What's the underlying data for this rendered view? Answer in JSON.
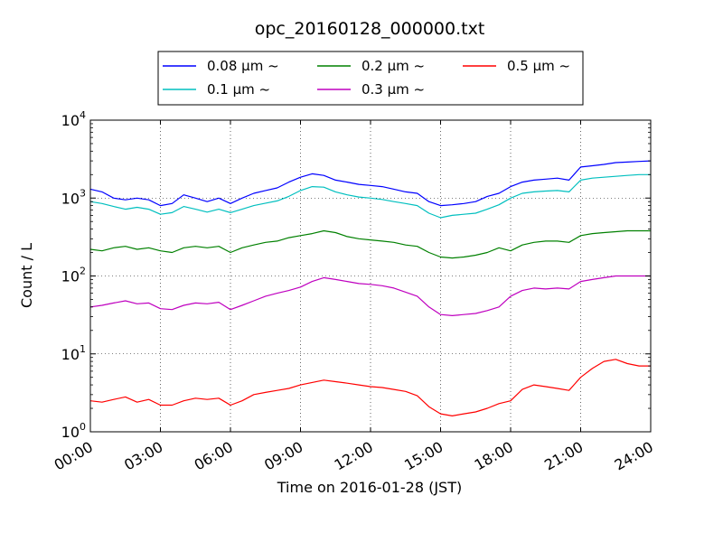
{
  "chart_data": {
    "type": "line",
    "title": "opc_20160128_000000.txt",
    "xlabel": "Time on 2016-01-28 (JST)",
    "ylabel": "Count / L",
    "x_unit": "hour",
    "xlim": [
      0,
      24
    ],
    "ylim": [
      1,
      10000
    ],
    "y_scale": "log",
    "grid": true,
    "legend_position": "top-center",
    "x_ticks": [
      0,
      3,
      6,
      9,
      12,
      15,
      18,
      21,
      24
    ],
    "x_tick_labels": [
      "00:00",
      "03:00",
      "06:00",
      "09:00",
      "12:00",
      "15:00",
      "18:00",
      "21:00",
      "24:00"
    ],
    "y_ticks": [
      1,
      10,
      100,
      1000,
      10000
    ],
    "y_tick_bases": [
      "10",
      "10",
      "10",
      "10",
      "10"
    ],
    "y_tick_exponents": [
      "0",
      "1",
      "2",
      "3",
      "4"
    ],
    "x": [
      0.0,
      0.5,
      1.0,
      1.5,
      2.0,
      2.5,
      3.0,
      3.5,
      4.0,
      4.5,
      5.0,
      5.5,
      6.0,
      6.5,
      7.0,
      7.5,
      8.0,
      8.5,
      9.0,
      9.5,
      10.0,
      10.5,
      11.0,
      11.5,
      12.0,
      12.5,
      13.0,
      13.5,
      14.0,
      14.5,
      15.0,
      15.5,
      16.0,
      16.5,
      17.0,
      17.5,
      18.0,
      18.5,
      19.0,
      19.5,
      20.0,
      20.5,
      21.0,
      21.5,
      22.0,
      22.5,
      23.0,
      23.5,
      24.0
    ],
    "series": [
      {
        "name": "0.08 μm ~",
        "color": "#0000ff",
        "values": [
          1300,
          1200,
          1000,
          950,
          1000,
          950,
          800,
          850,
          1100,
          1000,
          900,
          1000,
          850,
          1000,
          1150,
          1250,
          1350,
          1600,
          1850,
          2050,
          1950,
          1700,
          1600,
          1500,
          1450,
          1400,
          1300,
          1200,
          1150,
          900,
          800,
          820,
          850,
          900,
          1050,
          1150,
          1400,
          1600,
          1700,
          1750,
          1800,
          1700,
          2500,
          2600,
          2700,
          2850,
          2900,
          2950,
          3000
        ]
      },
      {
        "name": "0.1 μm ~",
        "color": "#00bfbf",
        "values": [
          900,
          850,
          780,
          720,
          760,
          720,
          620,
          650,
          780,
          720,
          660,
          720,
          650,
          720,
          800,
          860,
          920,
          1050,
          1250,
          1400,
          1380,
          1200,
          1100,
          1030,
          1000,
          960,
          900,
          850,
          800,
          640,
          560,
          600,
          620,
          640,
          720,
          820,
          1000,
          1150,
          1200,
          1230,
          1250,
          1200,
          1700,
          1800,
          1850,
          1900,
          1950,
          2000,
          2000
        ]
      },
      {
        "name": "0.2 μm ~",
        "color": "#008000",
        "values": [
          220,
          210,
          230,
          240,
          220,
          230,
          210,
          200,
          230,
          240,
          230,
          240,
          200,
          230,
          250,
          270,
          280,
          310,
          330,
          350,
          380,
          360,
          320,
          300,
          290,
          280,
          270,
          250,
          240,
          200,
          175,
          170,
          175,
          185,
          200,
          230,
          210,
          250,
          270,
          280,
          280,
          270,
          330,
          350,
          360,
          370,
          380,
          380,
          380
        ]
      },
      {
        "name": "0.3 μm ~",
        "color": "#bf00bf",
        "values": [
          40,
          42,
          45,
          48,
          44,
          45,
          38,
          37,
          42,
          45,
          44,
          46,
          37,
          42,
          48,
          55,
          60,
          65,
          72,
          85,
          95,
          90,
          85,
          80,
          78,
          75,
          70,
          62,
          55,
          40,
          32,
          31,
          32,
          33,
          36,
          40,
          55,
          65,
          70,
          68,
          70,
          68,
          85,
          90,
          95,
          100,
          100,
          100,
          100
        ]
      },
      {
        "name": "0.5 μm ~",
        "color": "#ff0000",
        "values": [
          2.5,
          2.4,
          2.6,
          2.8,
          2.4,
          2.6,
          2.2,
          2.2,
          2.5,
          2.7,
          2.6,
          2.7,
          2.2,
          2.5,
          3.0,
          3.2,
          3.4,
          3.6,
          4.0,
          4.3,
          4.6,
          4.4,
          4.2,
          4.0,
          3.8,
          3.7,
          3.5,
          3.3,
          2.9,
          2.1,
          1.7,
          1.6,
          1.7,
          1.8,
          2.0,
          2.3,
          2.5,
          3.5,
          4.0,
          3.8,
          3.6,
          3.4,
          5.0,
          6.5,
          8.0,
          8.5,
          7.5,
          7.0,
          7.0
        ]
      }
    ]
  }
}
